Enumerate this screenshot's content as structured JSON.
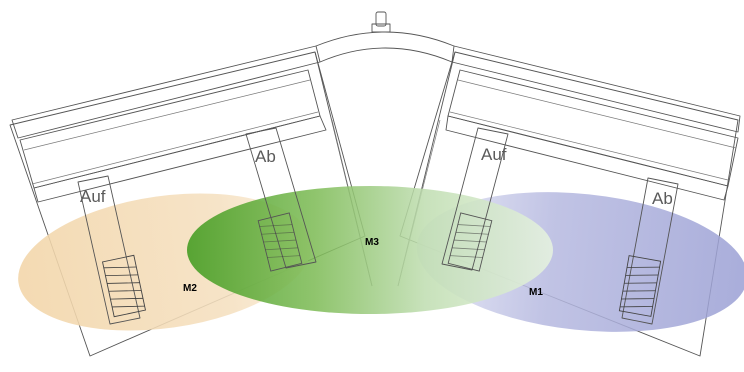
{
  "labels": {
    "left_outer_handle": "Auf",
    "left_inner_handle": "Ab",
    "right_inner_handle": "Auf",
    "right_outer_handle": "Ab"
  },
  "zones": [
    {
      "id": "M2",
      "label": "M2",
      "color": "#f2d3a4"
    },
    {
      "id": "M3",
      "label": "M3",
      "color": "#5da632"
    },
    {
      "id": "M1",
      "label": "M1",
      "color": "#a2a6d8"
    }
  ]
}
